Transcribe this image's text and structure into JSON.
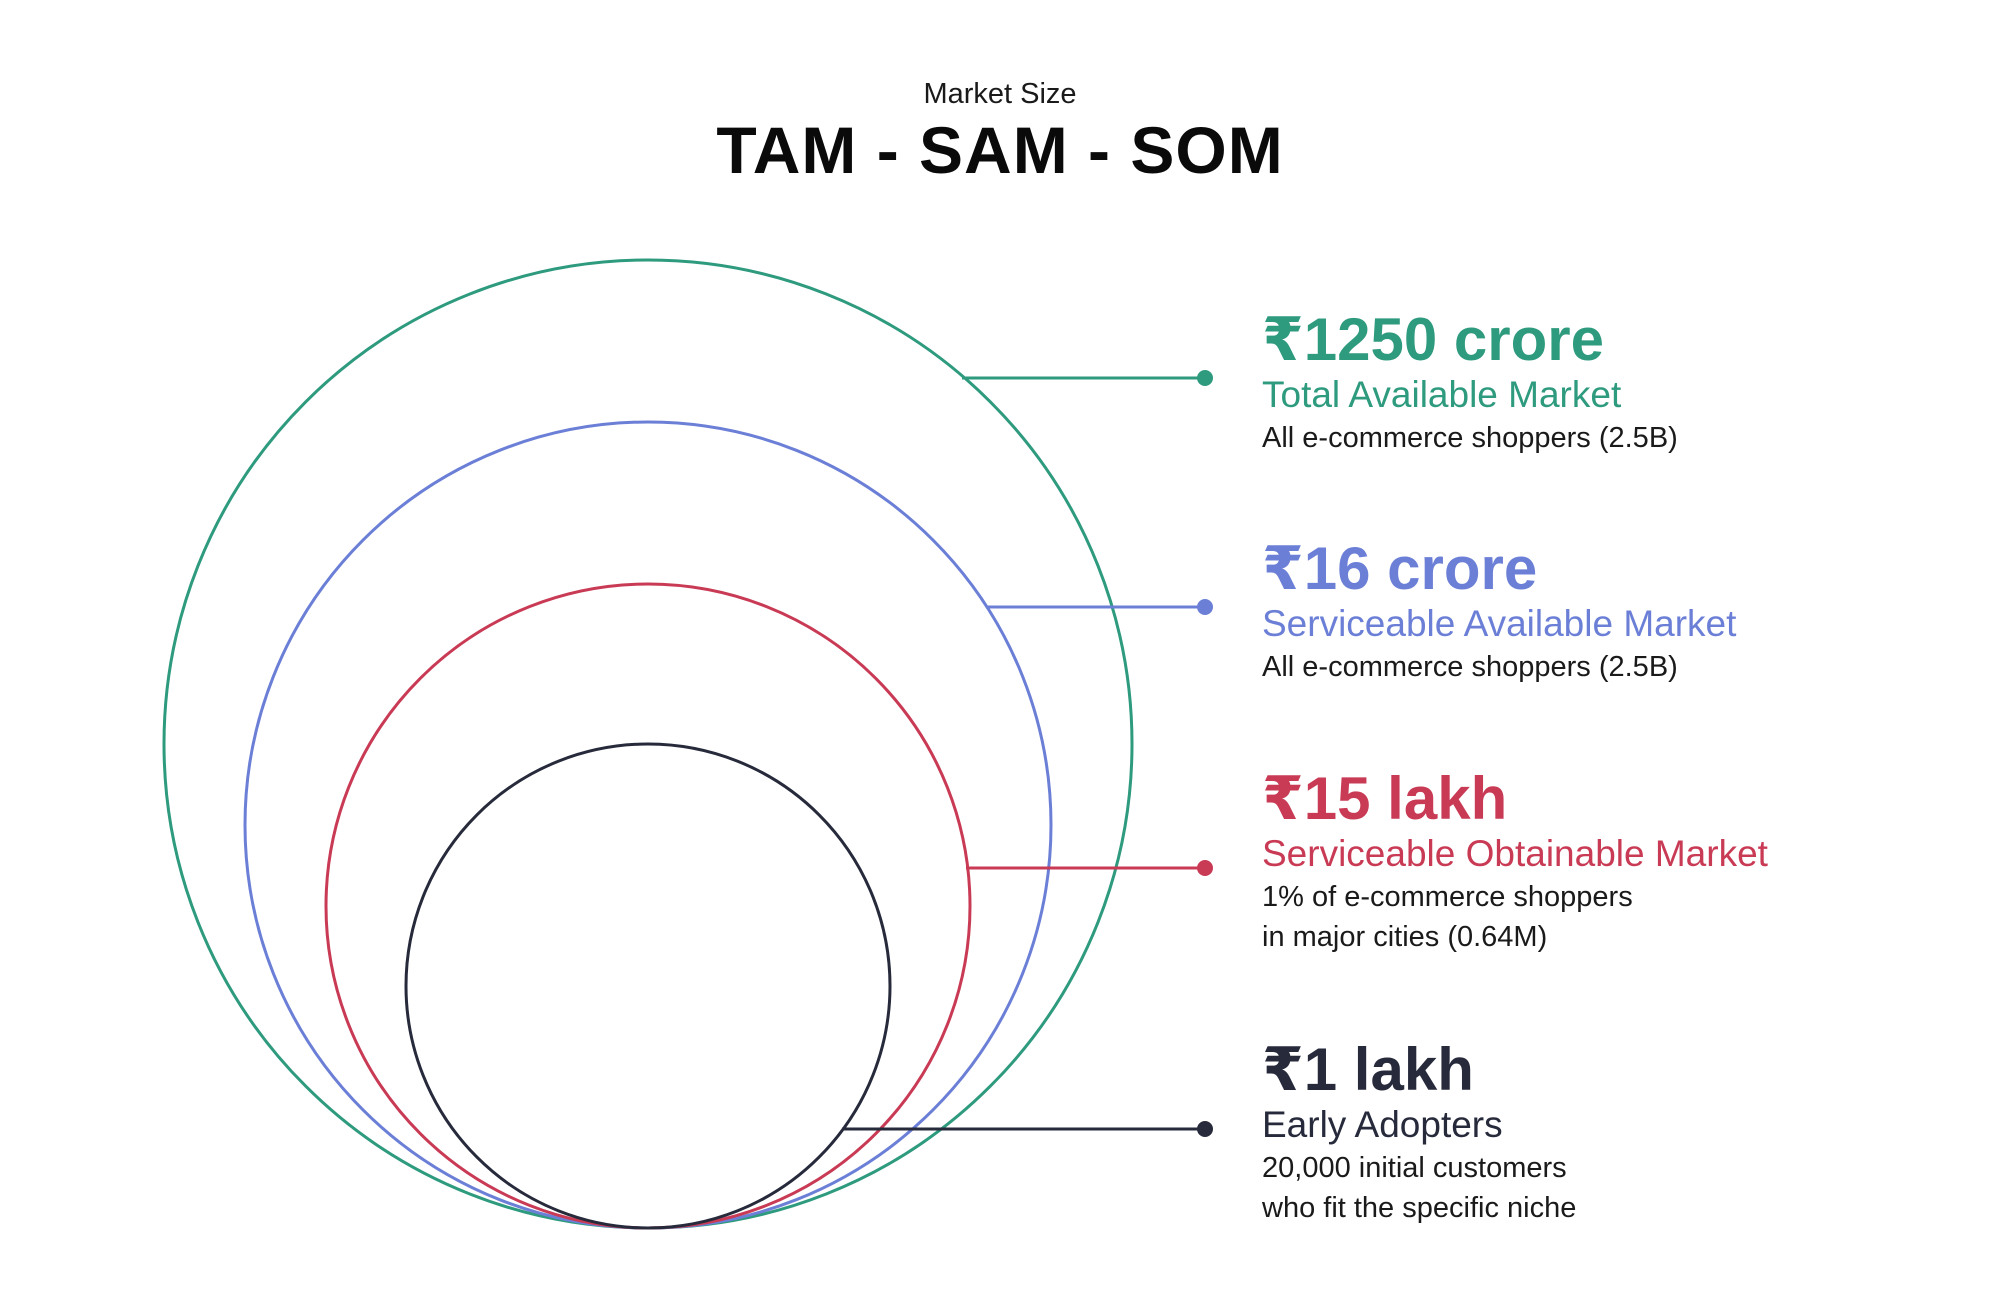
{
  "header": {
    "kicker": "Market Size",
    "title": "TAM - SAM - SOM"
  },
  "tiers": [
    {
      "key": "tam",
      "value": "₹1250 crore",
      "name": "Total Available Market",
      "desc_lines": [
        "All e-commerce shoppers (2.5B)"
      ],
      "color": "#2e9a7e"
    },
    {
      "key": "sam",
      "value": "₹16 crore",
      "name": "Serviceable Available Market",
      "desc_lines": [
        "All e-commerce shoppers (2.5B)"
      ],
      "color": "#6b7fd7"
    },
    {
      "key": "som",
      "value": "₹15 lakh",
      "name": "Serviceable Obtainable Market",
      "desc_lines": [
        "1% of e-commerce shoppers",
        "in major cities (0.64M)"
      ],
      "color": "#c93a55"
    },
    {
      "key": "early",
      "value": "₹1 lakh",
      "name": "Early Adopters",
      "desc_lines": [
        "20,000 initial customers",
        "who fit the specific niche"
      ],
      "color": "#262a3b"
    }
  ]
}
